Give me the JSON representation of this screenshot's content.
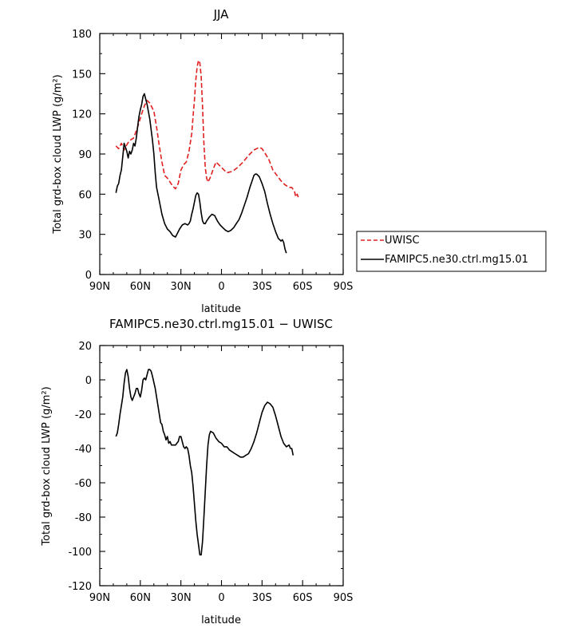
{
  "chart_data": [
    {
      "type": "line",
      "title": "JJA",
      "xlabel": "latitude",
      "ylabel": "Total grd-box cloud LWP (g/m²)",
      "xlim": [
        90,
        -90
      ],
      "ylim": [
        0,
        180
      ],
      "x_ticks": [
        {
          "value": 90,
          "label": "90N"
        },
        {
          "value": 60,
          "label": "60N"
        },
        {
          "value": 30,
          "label": "30N"
        },
        {
          "value": 0,
          "label": "0"
        },
        {
          "value": -30,
          "label": "30S"
        },
        {
          "value": -60,
          "label": "60S"
        },
        {
          "value": -90,
          "label": "90S"
        }
      ],
      "y_ticks": [
        0,
        30,
        60,
        90,
        120,
        150,
        180
      ],
      "legend": "right",
      "series": [
        {
          "name": "UWISC",
          "color": "#e02020",
          "dash": "dashed",
          "points": [
            [
              78,
              96
            ],
            [
              76,
              94
            ],
            [
              74,
              98
            ],
            [
              72,
              93
            ],
            [
              70,
              97
            ],
            [
              68,
              100
            ],
            [
              65,
              102
            ],
            [
              62,
              110
            ],
            [
              59,
              120
            ],
            [
              57,
              126
            ],
            [
              55,
              130
            ],
            [
              53,
              128
            ],
            [
              50,
              122
            ],
            [
              48,
              110
            ],
            [
              46,
              96
            ],
            [
              44,
              84
            ],
            [
              42,
              74
            ],
            [
              40,
              72
            ],
            [
              38,
              69
            ],
            [
              36,
              66
            ],
            [
              34,
              64
            ],
            [
              32,
              68
            ],
            [
              30,
              78
            ],
            [
              28,
              82
            ],
            [
              26,
              84
            ],
            [
              24,
              92
            ],
            [
              22,
              105
            ],
            [
              21,
              118
            ],
            [
              20,
              130
            ],
            [
              19,
              145
            ],
            [
              18,
              155
            ],
            [
              17,
              160
            ],
            [
              16,
              158
            ],
            [
              15,
              148
            ],
            [
              14,
              125
            ],
            [
              13,
              98
            ],
            [
              12,
              80
            ],
            [
              11,
              72
            ],
            [
              10,
              69
            ],
            [
              8,
              73
            ],
            [
              6,
              79
            ],
            [
              4,
              84
            ],
            [
              2,
              82
            ],
            [
              0,
              80
            ],
            [
              -4,
              76
            ],
            [
              -8,
              77
            ],
            [
              -12,
              80
            ],
            [
              -16,
              84
            ],
            [
              -20,
              89
            ],
            [
              -24,
              93
            ],
            [
              -28,
              95
            ],
            [
              -30,
              94
            ],
            [
              -32,
              91
            ],
            [
              -35,
              86
            ],
            [
              -38,
              78
            ],
            [
              -41,
              74
            ],
            [
              -44,
              70
            ],
            [
              -47,
              67
            ],
            [
              -50,
              65
            ],
            [
              -52,
              65
            ],
            [
              -54,
              62
            ],
            [
              -55,
              58
            ],
            [
              -56,
              60
            ],
            [
              -57,
              57
            ]
          ]
        },
        {
          "name": "FAMIPC5.ne30.ctrl.mg15.01",
          "color": "#000000",
          "dash": "solid",
          "points": [
            [
              78,
              61
            ],
            [
              77,
              66
            ],
            [
              76,
              68
            ],
            [
              75,
              74
            ],
            [
              74,
              78
            ],
            [
              73,
              88
            ],
            [
              72,
              98
            ],
            [
              71,
              95
            ],
            [
              70,
              92
            ],
            [
              69,
              87
            ],
            [
              68,
              92
            ],
            [
              67,
              90
            ],
            [
              66,
              93
            ],
            [
              65,
              98
            ],
            [
              64,
              96
            ],
            [
              63,
              102
            ],
            [
              62,
              110
            ],
            [
              61,
              118
            ],
            [
              60,
              123
            ],
            [
              59,
              127
            ],
            [
              58,
              133
            ],
            [
              57,
              135
            ],
            [
              56,
              131
            ],
            [
              55,
              127
            ],
            [
              53,
              116
            ],
            [
              51,
              100
            ],
            [
              50,
              90
            ],
            [
              49,
              76
            ],
            [
              48,
              65
            ],
            [
              46,
              55
            ],
            [
              44,
              45
            ],
            [
              42,
              38
            ],
            [
              40,
              34
            ],
            [
              38,
              32
            ],
            [
              36,
              29
            ],
            [
              34,
              28
            ],
            [
              33,
              30
            ],
            [
              31,
              34
            ],
            [
              29,
              37
            ],
            [
              27,
              38
            ],
            [
              25,
              37
            ],
            [
              24,
              38
            ],
            [
              23,
              40
            ],
            [
              22,
              45
            ],
            [
              21,
              49
            ],
            [
              20,
              54
            ],
            [
              19,
              59
            ],
            [
              18,
              61
            ],
            [
              17,
              60
            ],
            [
              16,
              54
            ],
            [
              15,
              46
            ],
            [
              14,
              40
            ],
            [
              13,
              38
            ],
            [
              12,
              38
            ],
            [
              11,
              40
            ],
            [
              9,
              43
            ],
            [
              7,
              45
            ],
            [
              5,
              44
            ],
            [
              3,
              40
            ],
            [
              1,
              37
            ],
            [
              -1,
              35
            ],
            [
              -3,
              33
            ],
            [
              -5,
              32
            ],
            [
              -7,
              33
            ],
            [
              -9,
              35
            ],
            [
              -11,
              38
            ],
            [
              -13,
              41
            ],
            [
              -15,
              46
            ],
            [
              -17,
              52
            ],
            [
              -19,
              58
            ],
            [
              -21,
              65
            ],
            [
              -23,
              71
            ],
            [
              -24,
              74
            ],
            [
              -25,
              75
            ],
            [
              -26,
              75
            ],
            [
              -28,
              73
            ],
            [
              -30,
              68
            ],
            [
              -32,
              62
            ],
            [
              -34,
              53
            ],
            [
              -36,
              45
            ],
            [
              -38,
              38
            ],
            [
              -40,
              32
            ],
            [
              -42,
              27
            ],
            [
              -44,
              25
            ],
            [
              -45,
              26
            ],
            [
              -46,
              24
            ],
            [
              -47,
              19
            ],
            [
              -48,
              16
            ]
          ]
        }
      ]
    },
    {
      "type": "line",
      "title": "FAMIPC5.ne30.ctrl.mg15.01 − UWISC",
      "xlabel": "latitude",
      "ylabel": "Total grd-box cloud LWP (g/m²)",
      "xlim": [
        90,
        -90
      ],
      "ylim": [
        -120,
        20
      ],
      "x_ticks": [
        {
          "value": 90,
          "label": "90N"
        },
        {
          "value": 60,
          "label": "60N"
        },
        {
          "value": 30,
          "label": "30N"
        },
        {
          "value": 0,
          "label": "0"
        },
        {
          "value": -30,
          "label": "30S"
        },
        {
          "value": -60,
          "label": "60S"
        },
        {
          "value": -90,
          "label": "90S"
        }
      ],
      "y_ticks": [
        -120,
        -100,
        -80,
        -60,
        -40,
        -20,
        0,
        20
      ],
      "series": [
        {
          "color": "#000000",
          "dash": "solid",
          "points": [
            [
              78,
              -33
            ],
            [
              77,
              -31
            ],
            [
              76,
              -26
            ],
            [
              75,
              -20
            ],
            [
              74,
              -15
            ],
            [
              73,
              -10
            ],
            [
              72,
              -2
            ],
            [
              71,
              4
            ],
            [
              70,
              6
            ],
            [
              69,
              2
            ],
            [
              68,
              -5
            ],
            [
              67,
              -10
            ],
            [
              66,
              -12
            ],
            [
              65,
              -10
            ],
            [
              64,
              -8
            ],
            [
              63,
              -5
            ],
            [
              62,
              -5
            ],
            [
              61,
              -8
            ],
            [
              60,
              -10
            ],
            [
              59,
              -6
            ],
            [
              58,
              0
            ],
            [
              57,
              1
            ],
            [
              56,
              0
            ],
            [
              55,
              3
            ],
            [
              54,
              6
            ],
            [
              53,
              6
            ],
            [
              52,
              5
            ],
            [
              51,
              2
            ],
            [
              49,
              -5
            ],
            [
              48,
              -10
            ],
            [
              47,
              -15
            ],
            [
              46,
              -20
            ],
            [
              45,
              -25
            ],
            [
              44,
              -26
            ],
            [
              43,
              -30
            ],
            [
              42,
              -32
            ],
            [
              41,
              -35
            ],
            [
              40,
              -33
            ],
            [
              39,
              -37
            ],
            [
              38,
              -36
            ],
            [
              37,
              -38
            ],
            [
              36,
              -38
            ],
            [
              35,
              -38
            ],
            [
              34,
              -38
            ],
            [
              33,
              -37
            ],
            [
              32,
              -36
            ],
            [
              31,
              -33
            ],
            [
              30,
              -33
            ],
            [
              29,
              -36
            ],
            [
              28,
              -39
            ],
            [
              27,
              -40
            ],
            [
              26,
              -39
            ],
            [
              25,
              -40
            ],
            [
              24,
              -44
            ],
            [
              23,
              -50
            ],
            [
              22,
              -54
            ],
            [
              21,
              -62
            ],
            [
              20,
              -72
            ],
            [
              19,
              -82
            ],
            [
              18,
              -90
            ],
            [
              17,
              -96
            ],
            [
              16,
              -102
            ],
            [
              15,
              -102
            ],
            [
              14,
              -94
            ],
            [
              13,
              -80
            ],
            [
              12,
              -65
            ],
            [
              11,
              -50
            ],
            [
              10,
              -38
            ],
            [
              9,
              -32
            ],
            [
              8,
              -30
            ],
            [
              6,
              -31
            ],
            [
              4,
              -34
            ],
            [
              2,
              -36
            ],
            [
              0,
              -37
            ],
            [
              -2,
              -39
            ],
            [
              -4,
              -39
            ],
            [
              -6,
              -41
            ],
            [
              -8,
              -42
            ],
            [
              -10,
              -43
            ],
            [
              -12,
              -44
            ],
            [
              -14,
              -45
            ],
            [
              -16,
              -45
            ],
            [
              -18,
              -44
            ],
            [
              -20,
              -43
            ],
            [
              -22,
              -40
            ],
            [
              -24,
              -36
            ],
            [
              -26,
              -31
            ],
            [
              -28,
              -25
            ],
            [
              -30,
              -19
            ],
            [
              -32,
              -15
            ],
            [
              -34,
              -13
            ],
            [
              -36,
              -14
            ],
            [
              -38,
              -16
            ],
            [
              -40,
              -21
            ],
            [
              -42,
              -27
            ],
            [
              -44,
              -33
            ],
            [
              -46,
              -37
            ],
            [
              -48,
              -39
            ],
            [
              -50,
              -38
            ],
            [
              -51,
              -40
            ],
            [
              -52,
              -40
            ],
            [
              -53,
              -44
            ]
          ]
        }
      ]
    }
  ]
}
